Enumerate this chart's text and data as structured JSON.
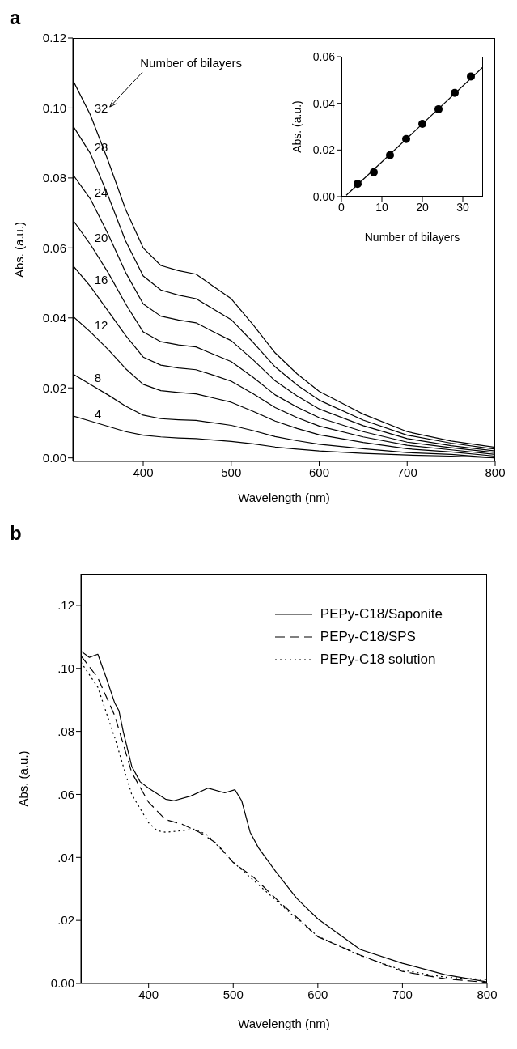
{
  "chart_data": [
    {
      "type": "line",
      "title": "a",
      "xlabel": "Wavelength (nm)",
      "ylabel": "Abs. (a.u.)",
      "x": [
        320,
        340,
        360,
        380,
        400,
        420,
        440,
        460,
        480,
        500,
        525,
        550,
        575,
        600,
        650,
        700,
        750,
        800
      ],
      "series": [
        {
          "name": "4",
          "color": "#000000",
          "values": [
            0.012,
            0.0105,
            0.009,
            0.0075,
            0.0065,
            0.006,
            0.0057,
            0.0055,
            0.0051,
            0.0047,
            0.004,
            0.0031,
            0.0025,
            0.002,
            0.0013,
            0.0008,
            0.0005,
            0
          ]
        },
        {
          "name": "8",
          "color": "#000000",
          "values": [
            0.024,
            0.021,
            0.018,
            0.0148,
            0.0122,
            0.0112,
            0.0109,
            0.0107,
            0.01,
            0.0093,
            0.0078,
            0.0061,
            0.0049,
            0.0039,
            0.0026,
            0.0015,
            0.001,
            0
          ]
        },
        {
          "name": "12",
          "color": "#000000",
          "values": [
            0.0405,
            0.036,
            0.031,
            0.0255,
            0.021,
            0.0192,
            0.0187,
            0.0183,
            0.0171,
            0.0159,
            0.0133,
            0.0105,
            0.0084,
            0.0066,
            0.0044,
            0.0026,
            0.0017,
            0.0005
          ]
        },
        {
          "name": "16",
          "color": "#000000",
          "values": [
            0.055,
            0.049,
            0.042,
            0.035,
            0.0288,
            0.0265,
            0.0257,
            0.0252,
            0.0236,
            0.0219,
            0.0183,
            0.0144,
            0.0115,
            0.0091,
            0.006,
            0.0036,
            0.0023,
            0.001
          ]
        },
        {
          "name": "20",
          "color": "#000000",
          "values": [
            0.068,
            0.061,
            0.053,
            0.044,
            0.036,
            0.0332,
            0.0323,
            0.0317,
            0.0296,
            0.0275,
            0.023,
            0.018,
            0.0145,
            0.0115,
            0.0075,
            0.0045,
            0.0029,
            0.0015
          ]
        },
        {
          "name": "24",
          "color": "#000000",
          "values": [
            0.081,
            0.074,
            0.064,
            0.053,
            0.044,
            0.0405,
            0.0394,
            0.0386,
            0.036,
            0.0335,
            0.028,
            0.022,
            0.0177,
            0.014,
            0.0092,
            0.0055,
            0.0035,
            0.002
          ]
        },
        {
          "name": "28",
          "color": "#000000",
          "values": [
            0.095,
            0.087,
            0.075,
            0.062,
            0.052,
            0.048,
            0.0465,
            0.0455,
            0.0425,
            0.0395,
            0.033,
            0.026,
            0.0208,
            0.0165,
            0.0108,
            0.0065,
            0.0042,
            0.0025
          ]
        },
        {
          "name": "32",
          "color": "#000000",
          "values": [
            0.108,
            0.098,
            0.085,
            0.071,
            0.06,
            0.055,
            0.0535,
            0.0525,
            0.049,
            0.0455,
            0.038,
            0.03,
            0.024,
            0.019,
            0.0125,
            0.0075,
            0.0048,
            0.003
          ]
        }
      ],
      "xlim": [
        320,
        800
      ],
      "ylim": [
        -0.001,
        0.12
      ],
      "xticks": [
        400,
        500,
        600,
        700,
        800
      ],
      "yticks": [
        {
          "value": 0,
          "label": "0.00"
        },
        {
          "value": 0.02,
          "label": "0.02"
        },
        {
          "value": 0.04,
          "label": "0.04"
        },
        {
          "value": 0.06,
          "label": "0.06"
        },
        {
          "value": 0.08,
          "label": "0.08"
        },
        {
          "value": 0.1,
          "label": "0.10"
        },
        {
          "value": 0.12,
          "label": "0.12"
        }
      ],
      "annotations": [
        "Number of bilayers"
      ]
    },
    {
      "type": "scatter",
      "xlabel": "Number of bilayers",
      "ylabel": "Abs. (a.u.)",
      "series": [
        {
          "marker": "circle",
          "color": "#000000",
          "x": [
            4,
            8,
            12,
            16,
            20,
            24,
            28,
            32
          ],
          "values": [
            0.0055,
            0.0105,
            0.0178,
            0.0247,
            0.0312,
            0.0375,
            0.0445,
            0.0515
          ]
        },
        {
          "type": "line",
          "color": "#000000",
          "x": [
            1.2,
            34.9
          ],
          "values": [
            0.0006,
            0.0554
          ]
        }
      ],
      "xlim": [
        0,
        35
      ],
      "ylim": [
        0,
        0.06
      ],
      "xticks": [
        0,
        10,
        20,
        30
      ],
      "yticks": [
        {
          "value": 0,
          "label": "0.00"
        },
        {
          "value": 0.02,
          "label": "0.02"
        },
        {
          "value": 0.04,
          "label": "0.04"
        },
        {
          "value": 0.06,
          "label": "0.06"
        }
      ]
    },
    {
      "type": "line",
      "title": "b",
      "xlabel": "Wavelength (nm)",
      "ylabel": "Abs. (a.u.)",
      "legend": "top right",
      "series": [
        {
          "name": "PEPy-C18/Saponite",
          "color": "#000000",
          "line_style": "solid",
          "x": [
            320,
            330,
            340,
            350,
            360,
            365,
            370,
            380,
            390,
            400,
            420,
            430,
            450,
            470,
            490,
            502,
            510,
            520,
            530,
            550,
            575,
            600,
            650,
            700,
            750,
            800
          ],
          "values": [
            0.1055,
            0.1035,
            0.1045,
            0.097,
            0.089,
            0.0865,
            0.08,
            0.069,
            0.064,
            0.062,
            0.0585,
            0.058,
            0.0595,
            0.062,
            0.0605,
            0.0615,
            0.058,
            0.048,
            0.043,
            0.0356,
            0.027,
            0.0205,
            0.0108,
            0.0064,
            0.0028,
            0.0005
          ]
        },
        {
          "name": "PEPy-C18/SPS",
          "color": "#000000",
          "line_style": "dashed",
          "x": [
            320,
            340,
            360,
            380,
            400,
            420,
            440,
            460,
            480,
            500,
            525,
            550,
            575,
            600,
            650,
            700,
            750,
            800
          ],
          "values": [
            0.104,
            0.097,
            0.085,
            0.067,
            0.0575,
            0.052,
            0.0505,
            0.048,
            0.0445,
            0.0384,
            0.0335,
            0.027,
            0.021,
            0.0148,
            0.009,
            0.0038,
            0.0015,
            0.0003
          ]
        },
        {
          "name": "PEPy-C18 solution",
          "color": "#000000",
          "line_style": "dotted",
          "x": [
            320,
            340,
            360,
            380,
            400,
            410,
            420,
            440,
            455,
            470,
            500,
            525,
            550,
            575,
            600,
            650,
            700,
            750,
            800
          ],
          "values": [
            0.102,
            0.094,
            0.078,
            0.06,
            0.051,
            0.0485,
            0.048,
            0.0485,
            0.049,
            0.047,
            0.0385,
            0.0325,
            0.0265,
            0.0205,
            0.015,
            0.0088,
            0.0042,
            0.002,
            0.0012
          ]
        }
      ],
      "xlim": [
        320,
        800
      ],
      "ylim": [
        0,
        0.13
      ],
      "xticks": [
        400,
        500,
        600,
        700,
        800
      ],
      "yticks": [
        {
          "value": 0,
          "label": "0.00"
        },
        {
          "value": 0.02,
          "label": ".02"
        },
        {
          "value": 0.04,
          "label": ".04"
        },
        {
          "value": 0.06,
          "label": ".06"
        },
        {
          "value": 0.08,
          "label": ".08"
        },
        {
          "value": 0.1,
          "label": ".10"
        },
        {
          "value": 0.12,
          "label": ".12"
        }
      ]
    }
  ]
}
